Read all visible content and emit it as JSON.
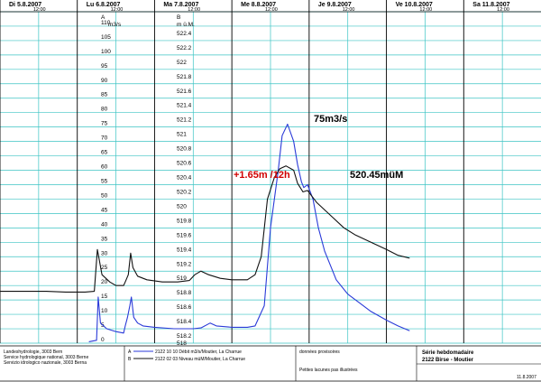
{
  "chart_data": {
    "type": "line",
    "days": [
      {
        "label": "Di  5.8.2007",
        "time": "12:00"
      },
      {
        "label": "Lu  6.8.2007",
        "time": "12:00"
      },
      {
        "label": "Ma  7.8.2007",
        "time": "12:00"
      },
      {
        "label": "Me  8.8.2007",
        "time": "12:00"
      },
      {
        "label": "Je  9.8.2007",
        "time": "12:00"
      },
      {
        "label": "Ve  10.8.2007",
        "time": "12:00"
      },
      {
        "label": "Sa  11.8.2007",
        "time": "12:00"
      }
    ],
    "axis_a": {
      "letter": "A",
      "unit": "m3/s",
      "range": [
        0,
        115
      ],
      "ticks": [
        "0",
        "5",
        "10",
        "15",
        "20",
        "25",
        "30",
        "35",
        "40",
        "45",
        "50",
        "55",
        "60",
        "65",
        "70",
        "75",
        "80",
        "85",
        "90",
        "95",
        "100",
        "105",
        "110"
      ]
    },
    "axis_b": {
      "letter": "B",
      "unit": "m ü.M.",
      "range": [
        518.0,
        522.6
      ],
      "ticks": [
        "518.2",
        "518.4",
        "518.6",
        "518.8",
        "519",
        "519.2",
        "519.4",
        "519.6",
        "519.8",
        "520",
        "520.2",
        "520.4",
        "520.6",
        "520.8",
        "521",
        "521.2",
        "521.4",
        "521.6",
        "521.8",
        "522",
        "522.2",
        "522.4"
      ]
    },
    "bottom_tick": "518",
    "series": [
      {
        "name": "Débit m3/s/Moutier, La Charrue",
        "axis": "A",
        "color": "#2a3ad8",
        "points": [
          [
            1.15,
            0.5
          ],
          [
            1.25,
            1
          ],
          [
            1.27,
            16
          ],
          [
            1.3,
            7
          ],
          [
            1.38,
            5
          ],
          [
            1.5,
            4
          ],
          [
            1.6,
            3.5
          ],
          [
            1.62,
            6
          ],
          [
            1.65,
            9
          ],
          [
            1.68,
            13
          ],
          [
            1.7,
            16
          ],
          [
            1.73,
            9
          ],
          [
            1.78,
            7
          ],
          [
            1.85,
            6
          ],
          [
            2.0,
            5.5
          ],
          [
            2.25,
            5
          ],
          [
            2.5,
            5
          ],
          [
            2.6,
            5.3
          ],
          [
            2.72,
            7
          ],
          [
            2.8,
            6
          ],
          [
            3.0,
            5.5
          ],
          [
            3.2,
            5.5
          ],
          [
            3.3,
            6
          ],
          [
            3.42,
            13
          ],
          [
            3.5,
            40
          ],
          [
            3.6,
            60
          ],
          [
            3.65,
            72
          ],
          [
            3.72,
            76
          ],
          [
            3.8,
            70
          ],
          [
            3.85,
            62
          ],
          [
            3.9,
            56
          ],
          [
            3.93,
            54
          ],
          [
            3.98,
            55
          ],
          [
            4.05,
            50
          ],
          [
            4.12,
            40
          ],
          [
            4.2,
            32
          ],
          [
            4.35,
            22
          ],
          [
            4.5,
            17
          ],
          [
            4.65,
            14
          ],
          [
            4.8,
            11
          ],
          [
            5.0,
            8
          ],
          [
            5.15,
            6
          ],
          [
            5.3,
            4.3
          ]
        ]
      },
      {
        "name": "Niveau müM/Moutier, La Charrue",
        "axis": "B",
        "color": "#111111",
        "points": [
          [
            0.0,
            518.72
          ],
          [
            0.3,
            518.72
          ],
          [
            0.6,
            518.72
          ],
          [
            0.85,
            518.71
          ],
          [
            1.1,
            518.71
          ],
          [
            1.22,
            518.72
          ],
          [
            1.26,
            519.3
          ],
          [
            1.32,
            518.95
          ],
          [
            1.42,
            518.85
          ],
          [
            1.5,
            518.8
          ],
          [
            1.6,
            518.8
          ],
          [
            1.62,
            518.85
          ],
          [
            1.66,
            518.95
          ],
          [
            1.69,
            519.25
          ],
          [
            1.72,
            519.05
          ],
          [
            1.78,
            518.93
          ],
          [
            1.9,
            518.88
          ],
          [
            2.1,
            518.85
          ],
          [
            2.3,
            518.85
          ],
          [
            2.45,
            518.87
          ],
          [
            2.52,
            518.95
          ],
          [
            2.6,
            519.0
          ],
          [
            2.7,
            518.95
          ],
          [
            2.85,
            518.9
          ],
          [
            3.0,
            518.88
          ],
          [
            3.2,
            518.88
          ],
          [
            3.3,
            518.95
          ],
          [
            3.38,
            519.2
          ],
          [
            3.46,
            520.0
          ],
          [
            3.55,
            520.3
          ],
          [
            3.62,
            520.42
          ],
          [
            3.7,
            520.46
          ],
          [
            3.8,
            520.4
          ],
          [
            3.85,
            520.22
          ],
          [
            3.92,
            520.1
          ],
          [
            3.98,
            520.12
          ],
          [
            4.1,
            519.95
          ],
          [
            4.2,
            519.85
          ],
          [
            4.3,
            519.75
          ],
          [
            4.45,
            519.6
          ],
          [
            4.6,
            519.5
          ],
          [
            4.8,
            519.4
          ],
          [
            5.0,
            519.3
          ],
          [
            5.15,
            519.22
          ],
          [
            5.3,
            519.18
          ]
        ]
      }
    ],
    "annotations": [
      {
        "text": "75m3/s",
        "color": "#000000"
      },
      {
        "text": "+1.65m /12h",
        "color": "#d00000"
      },
      {
        "text": "520.45müM",
        "color": "#000000"
      }
    ]
  },
  "footer": {
    "agency": [
      "Landeshydrologie, 3003 Bern",
      "Service hydrologique national, 3003 Berne",
      "Servizio idrologico nazionale, 3003 Berna"
    ],
    "legend": [
      {
        "letter": "A",
        "text": "2122 10 10  Débit m3/s/Moutier, La Charrue"
      },
      {
        "letter": "B",
        "text": "2122 02 03  Niveau müM/Moutier, La Charrue"
      }
    ],
    "notes": [
      "données provisoires",
      "Petites lacunes pas illustrées"
    ],
    "title": [
      "Série hebdomadaire",
      "2122 Birse - Moutier"
    ],
    "date": "11.8.2007"
  }
}
